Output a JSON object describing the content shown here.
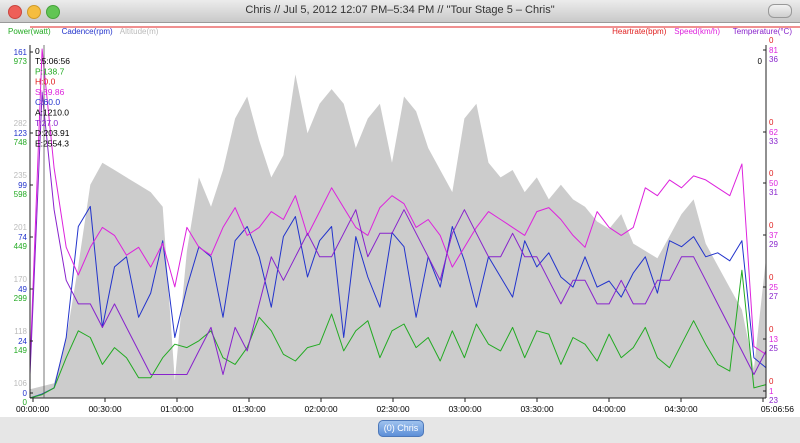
{
  "window": {
    "title": "Chris // Jul 5, 2012 12:07 PM–5:34 PM // \"Tour Stage 5 – Chris\""
  },
  "legend_left": [
    {
      "label": "Power(watt)",
      "color": "#22aa22"
    },
    {
      "label": "Cadence(rpm)",
      "color": "#2233cc"
    },
    {
      "label": "Altitude(m)",
      "color": "#bbbbbb"
    }
  ],
  "legend_right": [
    {
      "label": "Heartrate(bpm)",
      "color": "#e02020"
    },
    {
      "label": "Speed(km/h)",
      "color": "#dd22dd"
    },
    {
      "label": "Temperature(°C)",
      "color": "#8822cc"
    }
  ],
  "readout": {
    "top": "0",
    "lines": [
      {
        "text": "T:5:06:56",
        "color": "#000000"
      },
      {
        "text": "P:138.7",
        "color": "#22aa22"
      },
      {
        "text": "H:0.0",
        "color": "#e02020"
      },
      {
        "text": "S:39.86",
        "color": "#dd22dd"
      },
      {
        "text": "C:60.0",
        "color": "#2233cc"
      },
      {
        "text": "A:1210.0",
        "color": "#000000"
      },
      {
        "text": "T:27.0",
        "color": "#8822cc"
      },
      {
        "text": "D:203.91",
        "color": "#000000"
      },
      {
        "text": "E:2554.3",
        "color": "#000000"
      }
    ]
  },
  "left_axis_ticks": [
    {
      "alt": "",
      "cad": "161",
      "pow": "973"
    },
    {
      "alt": "282",
      "cad": "123",
      "pow": "748"
    },
    {
      "alt": "235",
      "cad": "99",
      "pow": "598"
    },
    {
      "alt": "201",
      "cad": "74",
      "pow": "449"
    },
    {
      "alt": "170",
      "cad": "49",
      "pow": "299"
    },
    {
      "alt": "118",
      "cad": "24",
      "pow": "149"
    },
    {
      "alt": "106",
      "cad": "0",
      "pow": "0"
    }
  ],
  "right_axis_ticks": [
    {
      "hr": "0",
      "spd": "81",
      "tmp": "36"
    },
    {
      "hr": "0",
      "spd": "62",
      "tmp": "33"
    },
    {
      "hr": "0",
      "spd": "50",
      "tmp": "31"
    },
    {
      "hr": "0",
      "spd": "37",
      "tmp": "29"
    },
    {
      "hr": "0",
      "spd": "25",
      "tmp": "27"
    },
    {
      "hr": "0",
      "spd": "13",
      "tmp": "25"
    },
    {
      "hr": "0",
      "spd": "1",
      "tmp": "23"
    }
  ],
  "right_top_zero": "0",
  "x_axis_ticks": [
    "00:00:00",
    "00:30:00",
    "01:00:00",
    "01:30:00",
    "02:00:00",
    "02:30:00",
    "03:00:00",
    "03:30:00",
    "04:00:00",
    "04:30:00",
    "05:06:56"
  ],
  "footer": {
    "ride_button": "(0) Chris"
  },
  "chart_data": {
    "type": "line",
    "x": [
      0,
      5,
      10,
      15,
      20,
      25,
      30,
      35,
      40,
      45,
      50,
      55,
      60,
      65,
      70,
      75,
      80,
      85,
      90,
      95,
      100,
      105,
      110,
      115,
      120,
      125,
      130,
      135,
      140,
      145,
      150,
      155,
      160,
      165,
      170,
      175,
      180,
      185,
      190,
      195,
      200,
      205,
      210,
      215,
      220,
      225,
      230,
      235,
      240,
      245,
      250,
      255,
      260,
      265,
      270,
      275,
      280,
      285,
      290,
      295,
      300,
      305
    ],
    "xlabel": "",
    "series": [
      {
        "name": "Altitude(m)",
        "axis": "left",
        "color": "#cccccc",
        "fill": true,
        "ylim": [
          100,
          340
        ],
        "values": [
          106,
          108,
          110,
          140,
          190,
          245,
          260,
          255,
          250,
          245,
          240,
          230,
          112,
          200,
          250,
          230,
          255,
          290,
          305,
          275,
          250,
          265,
          320,
          280,
          300,
          310,
          300,
          270,
          290,
          300,
          260,
          305,
          295,
          270,
          255,
          240,
          290,
          300,
          260,
          250,
          255,
          240,
          250,
          235,
          245,
          235,
          230,
          220,
          215,
          225,
          205,
          200,
          195,
          210,
          225,
          235,
          205,
          190,
          175,
          160,
          120,
          195
        ]
      },
      {
        "name": "Cadence(rpm)",
        "axis": "left",
        "color": "#2233cc",
        "fill": false,
        "ylim": [
          0,
          175
        ],
        "values": [
          0,
          2,
          5,
          30,
          85,
          95,
          35,
          65,
          70,
          40,
          52,
          78,
          30,
          55,
          75,
          70,
          40,
          78,
          85,
          70,
          45,
          80,
          90,
          60,
          78,
          85,
          30,
          80,
          60,
          45,
          82,
          75,
          40,
          70,
          55,
          85,
          68,
          45,
          70,
          60,
          50,
          78,
          65,
          72,
          60,
          55,
          70,
          55,
          58,
          50,
          62,
          70,
          52,
          78,
          75,
          80,
          70,
          72,
          68,
          78,
          20,
          15
        ]
      },
      {
        "name": "Power(watt)",
        "axis": "left",
        "color": "#22aa22",
        "fill": false,
        "ylim": [
          0,
          1050
        ],
        "values": [
          0,
          10,
          30,
          120,
          200,
          180,
          100,
          150,
          120,
          60,
          60,
          120,
          160,
          150,
          170,
          200,
          120,
          100,
          150,
          240,
          200,
          130,
          110,
          150,
          160,
          250,
          140,
          200,
          230,
          120,
          200,
          220,
          150,
          180,
          110,
          200,
          120,
          220,
          160,
          140,
          210,
          120,
          200,
          190,
          100,
          180,
          160,
          110,
          190,
          120,
          150,
          210,
          120,
          90,
          160,
          230,
          160,
          100,
          80,
          380,
          30,
          40
        ]
      },
      {
        "name": "Speed(km/h)",
        "axis": "right",
        "color": "#dd22dd",
        "fill": false,
        "ylim": [
          -3,
          86
        ],
        "values": [
          5,
          85,
          55,
          35,
          28,
          35,
          40,
          38,
          33,
          35,
          30,
          36,
          25,
          40,
          35,
          33,
          40,
          45,
          38,
          40,
          44,
          42,
          48,
          38,
          44,
          50,
          45,
          40,
          38,
          45,
          48,
          46,
          40,
          42,
          38,
          30,
          35,
          40,
          44,
          42,
          40,
          38,
          44,
          45,
          42,
          38,
          35,
          44,
          40,
          38,
          40,
          50,
          48,
          52,
          50,
          53,
          52,
          50,
          48,
          56,
          10,
          8
        ]
      },
      {
        "name": "Temperature(°C)",
        "axis": "right",
        "color": "#8822cc",
        "fill": false,
        "ylim": [
          22,
          37
        ],
        "values": [
          23,
          35,
          30,
          27,
          26,
          26,
          25,
          26,
          25,
          24,
          23,
          23,
          23,
          23,
          24,
          25,
          23,
          25,
          24,
          26,
          28,
          27,
          28,
          29,
          28,
          28,
          29,
          30,
          28,
          29,
          29,
          30,
          29,
          28,
          27,
          29,
          30,
          29,
          28,
          28,
          29,
          28,
          28,
          27,
          26,
          27,
          27,
          26,
          26,
          27,
          26,
          26,
          27,
          27,
          28,
          28,
          27,
          26,
          25,
          24,
          23,
          24
        ]
      }
    ]
  }
}
